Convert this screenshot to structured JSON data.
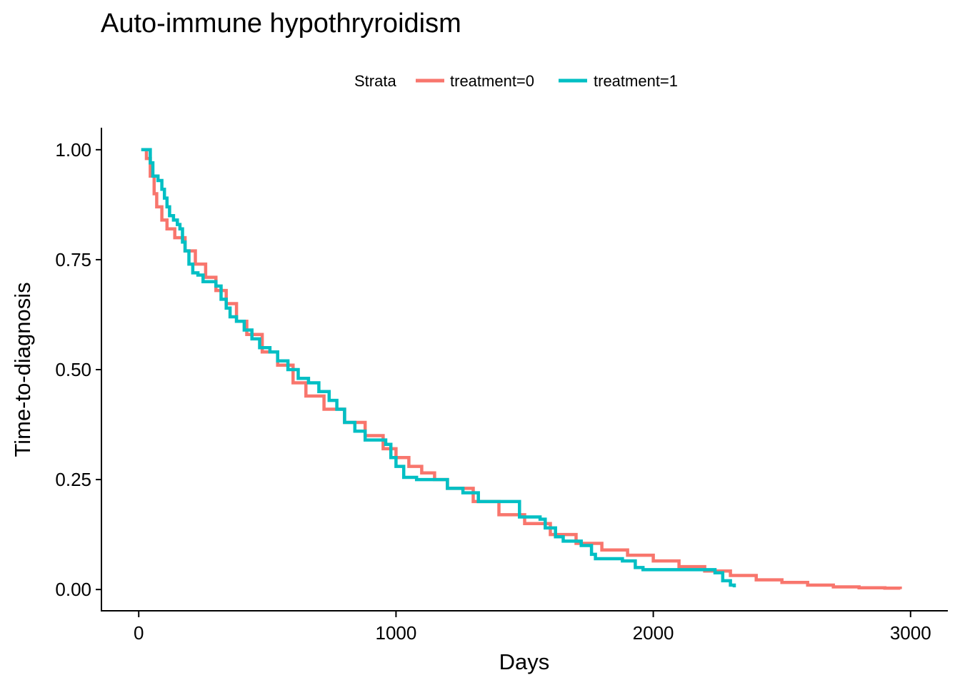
{
  "chart_data": {
    "type": "line",
    "step": true,
    "title": "Auto-immune hypothryroidism",
    "xlabel": "Days",
    "ylabel": "Time-to-diagnosis",
    "xlim": [
      -145,
      3145
    ],
    "ylim": [
      -0.05,
      1.05
    ],
    "x_ticks": [
      0,
      1000,
      2000,
      3000
    ],
    "x_tick_labels": [
      "0",
      "1000",
      "2000",
      "3000"
    ],
    "y_ticks": [
      0,
      0.25,
      0.5,
      0.75,
      1.0
    ],
    "y_tick_labels": [
      "0.00",
      "0.25",
      "0.50",
      "0.75",
      "1.00"
    ],
    "grid": false,
    "legend": {
      "title": "Strata",
      "position": "top"
    },
    "series": [
      {
        "name": "treatment=0",
        "color": "#F8766D",
        "points": [
          [
            10,
            1.0
          ],
          [
            30,
            0.98
          ],
          [
            45,
            0.94
          ],
          [
            60,
            0.9
          ],
          [
            70,
            0.87
          ],
          [
            90,
            0.84
          ],
          [
            110,
            0.82
          ],
          [
            140,
            0.8
          ],
          [
            180,
            0.77
          ],
          [
            220,
            0.74
          ],
          [
            260,
            0.71
          ],
          [
            300,
            0.68
          ],
          [
            340,
            0.65
          ],
          [
            380,
            0.61
          ],
          [
            420,
            0.58
          ],
          [
            480,
            0.54
          ],
          [
            540,
            0.51
          ],
          [
            600,
            0.47
          ],
          [
            650,
            0.44
          ],
          [
            720,
            0.41
          ],
          [
            800,
            0.38
          ],
          [
            880,
            0.35
          ],
          [
            950,
            0.32
          ],
          [
            1000,
            0.3
          ],
          [
            1050,
            0.28
          ],
          [
            1100,
            0.265
          ],
          [
            1150,
            0.25
          ],
          [
            1200,
            0.23
          ],
          [
            1300,
            0.2
          ],
          [
            1400,
            0.17
          ],
          [
            1500,
            0.15
          ],
          [
            1600,
            0.125
          ],
          [
            1700,
            0.105
          ],
          [
            1800,
            0.09
          ],
          [
            1900,
            0.078
          ],
          [
            2000,
            0.065
          ],
          [
            2100,
            0.052
          ],
          [
            2200,
            0.042
          ],
          [
            2300,
            0.032
          ],
          [
            2400,
            0.022
          ],
          [
            2500,
            0.016
          ],
          [
            2600,
            0.01
          ],
          [
            2700,
            0.006
          ],
          [
            2800,
            0.004
          ],
          [
            2900,
            0.003
          ],
          [
            2960,
            0.001
          ]
        ]
      },
      {
        "name": "treatment=1",
        "color": "#00BFC4",
        "points": [
          [
            10,
            1.0
          ],
          [
            35,
            1.0
          ],
          [
            45,
            0.97
          ],
          [
            55,
            0.94
          ],
          [
            75,
            0.93
          ],
          [
            90,
            0.91
          ],
          [
            100,
            0.89
          ],
          [
            110,
            0.87
          ],
          [
            120,
            0.85
          ],
          [
            135,
            0.84
          ],
          [
            150,
            0.83
          ],
          [
            160,
            0.82
          ],
          [
            170,
            0.79
          ],
          [
            180,
            0.77
          ],
          [
            195,
            0.74
          ],
          [
            210,
            0.72
          ],
          [
            230,
            0.715
          ],
          [
            250,
            0.7
          ],
          [
            280,
            0.7
          ],
          [
            300,
            0.69
          ],
          [
            320,
            0.66
          ],
          [
            340,
            0.64
          ],
          [
            355,
            0.62
          ],
          [
            380,
            0.61
          ],
          [
            410,
            0.59
          ],
          [
            440,
            0.57
          ],
          [
            470,
            0.55
          ],
          [
            510,
            0.54
          ],
          [
            540,
            0.52
          ],
          [
            580,
            0.5
          ],
          [
            620,
            0.48
          ],
          [
            660,
            0.47
          ],
          [
            700,
            0.45
          ],
          [
            740,
            0.43
          ],
          [
            770,
            0.41
          ],
          [
            800,
            0.38
          ],
          [
            840,
            0.36
          ],
          [
            880,
            0.34
          ],
          [
            960,
            0.33
          ],
          [
            980,
            0.3
          ],
          [
            1000,
            0.28
          ],
          [
            1030,
            0.255
          ],
          [
            1080,
            0.25
          ],
          [
            1150,
            0.25
          ],
          [
            1200,
            0.23
          ],
          [
            1260,
            0.22
          ],
          [
            1320,
            0.2
          ],
          [
            1440,
            0.2
          ],
          [
            1480,
            0.165
          ],
          [
            1560,
            0.16
          ],
          [
            1580,
            0.14
          ],
          [
            1620,
            0.12
          ],
          [
            1650,
            0.11
          ],
          [
            1720,
            0.1
          ],
          [
            1760,
            0.08
          ],
          [
            1775,
            0.07
          ],
          [
            1880,
            0.065
          ],
          [
            1930,
            0.05
          ],
          [
            1960,
            0.045
          ],
          [
            2030,
            0.045
          ],
          [
            2150,
            0.045
          ],
          [
            2240,
            0.038
          ],
          [
            2270,
            0.02
          ],
          [
            2300,
            0.01
          ],
          [
            2315,
            0.005
          ]
        ]
      }
    ]
  }
}
